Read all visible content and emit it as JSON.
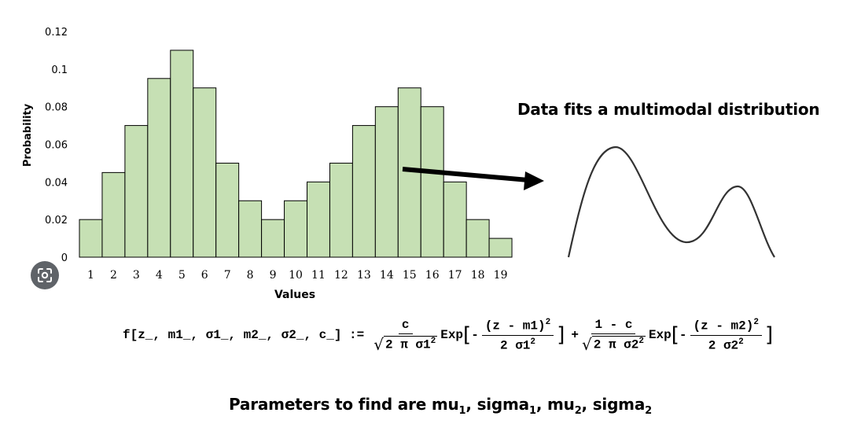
{
  "chart_data": {
    "type": "bar",
    "categories": [
      "1",
      "2",
      "3",
      "4",
      "5",
      "6",
      "7",
      "8",
      "9",
      "10",
      "11",
      "12",
      "13",
      "14",
      "15",
      "16",
      "17",
      "18",
      "19"
    ],
    "values": [
      0.02,
      0.045,
      0.07,
      0.095,
      0.11,
      0.09,
      0.05,
      0.03,
      0.02,
      0.03,
      0.04,
      0.05,
      0.07,
      0.08,
      0.09,
      0.08,
      0.04,
      0.02,
      0.01
    ],
    "xlabel": "Values",
    "ylabel": "Probability",
    "ylim": [
      0,
      0.12
    ],
    "yticks": [
      "0",
      "0.02",
      "0.04",
      "0.06",
      "0.08",
      "0.1",
      "0.12"
    ],
    "ytick_values": [
      0,
      0.02,
      0.04,
      0.06,
      0.08,
      0.1,
      0.12
    ],
    "grid": false,
    "bar_color": "#c6e0b4",
    "bar_edge_color": "#000000"
  },
  "annotation": {
    "fit_title": "Data fits a multimodal distribution",
    "arrow_color": "#000000",
    "curve_color": "#333333"
  },
  "formula": {
    "lhs": "f[z_, m1_, σ1_, m2_, σ2_, c_] :=",
    "term1_num": "c",
    "term1_den": "2 π σ1",
    "exp_label": "Exp",
    "exp1_num": "(z - m1)",
    "exp1_den": "2 σ1",
    "plus": "+",
    "term2_num": "1 - c",
    "term2_den": "2 π σ2",
    "exp2_num": "(z - m2)",
    "exp2_den": "2 σ2",
    "power": "2"
  },
  "params": {
    "prefix": "Parameters to find are mu",
    "sub1": "1",
    "sep1": ", sigma",
    "sub2": "1",
    "sep2": ", mu",
    "sub3": "2",
    "sep3": ", sigma",
    "sub4": "2"
  },
  "lens_icon": "google-lens-icon"
}
